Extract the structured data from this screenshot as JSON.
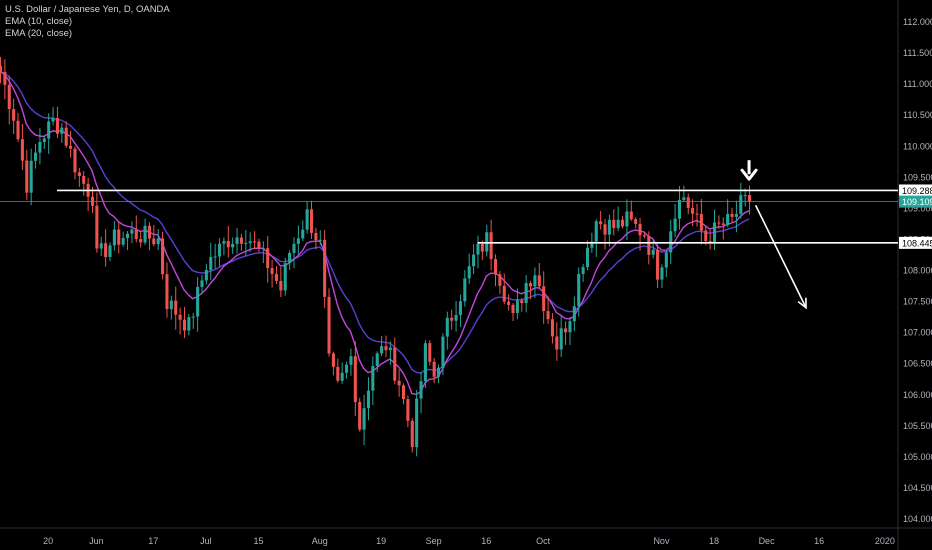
{
  "chart_data": {
    "type": "candlestick",
    "legend": {
      "title": "U.S. Dollar / Japanese Yen, D, OANDA",
      "indicators": [
        "EMA (10, close)",
        "EMA (20, close)"
      ]
    },
    "y_axis": {
      "range": [
        103.8,
        112.2
      ],
      "ticks": [
        "112.000",
        "111.500",
        "111.000",
        "110.500",
        "110.000",
        "109.500",
        "109.000",
        "108.500",
        "108.000",
        "107.500",
        "107.000",
        "106.500",
        "106.000",
        "105.500",
        "105.000",
        "104.500",
        "104.000"
      ]
    },
    "x_axis": {
      "range": [
        0,
        205
      ],
      "ticks": [
        {
          "label": "20",
          "x": 11
        },
        {
          "label": "Jun",
          "x": 22
        },
        {
          "label": "17",
          "x": 35
        },
        {
          "label": "Jul",
          "x": 47
        },
        {
          "label": "15",
          "x": 59
        },
        {
          "label": "Aug",
          "x": 73
        },
        {
          "label": "19",
          "x": 87
        },
        {
          "label": "Sep",
          "x": 99
        },
        {
          "label": "16",
          "x": 111
        },
        {
          "label": "Oct",
          "x": 124
        },
        {
          "label": "Nov",
          "x": 151
        },
        {
          "label": "18",
          "x": 163
        },
        {
          "label": "Dec",
          "x": 175
        },
        {
          "label": "16",
          "x": 187
        },
        {
          "label": "2020",
          "x": 202
        }
      ]
    },
    "horizontal_levels": [
      {
        "label": "109.288",
        "price": 109.288,
        "x_start": 13,
        "color": "#ffffff",
        "text_color": "#000000"
      },
      {
        "label": "108.445",
        "price": 108.445,
        "x_start": 109,
        "color": "#ffffff",
        "text_color": "#000000"
      },
      {
        "label": "109.109",
        "price": 109.109,
        "x_start": 0,
        "color": "#26a69a",
        "text_color": "#ffffff",
        "thin": true
      }
    ],
    "annotations": {
      "down_arrow": {
        "x": 171,
        "price": 109.55
      },
      "projection": {
        "from": [
          172.5,
          109.05
        ],
        "to": [
          184,
          107.4
        ]
      }
    },
    "colors": {
      "up": "#26a69a",
      "down": "#ef5350",
      "ema_fast": "#c546dc",
      "ema_slow": "#5b3fd6"
    },
    "anchors": [
      [
        0,
        111.2
      ],
      [
        3,
        110.5
      ],
      [
        6,
        109.4
      ],
      [
        9,
        110.1
      ],
      [
        12,
        110.4
      ],
      [
        14,
        110.3
      ],
      [
        18,
        109.5
      ],
      [
        21,
        109.2
      ],
      [
        22,
        108.2
      ],
      [
        26,
        108.5
      ],
      [
        30,
        108.6
      ],
      [
        36,
        108.5
      ],
      [
        38,
        107.5
      ],
      [
        43,
        107.1
      ],
      [
        47,
        108.1
      ],
      [
        52,
        108.5
      ],
      [
        56,
        108.6
      ],
      [
        61,
        108.1
      ],
      [
        64,
        107.7
      ],
      [
        66,
        108.3
      ],
      [
        70,
        108.9
      ],
      [
        73,
        108.4
      ],
      [
        75,
        106.5
      ],
      [
        77,
        106.1
      ],
      [
        80,
        106.6
      ],
      [
        82,
        105.5
      ],
      [
        85,
        106.5
      ],
      [
        88,
        106.8
      ],
      [
        91,
        106.2
      ],
      [
        94,
        105.3
      ],
      [
        97,
        106.7
      ],
      [
        99,
        106.3
      ],
      [
        102,
        107.1
      ],
      [
        106,
        107.8
      ],
      [
        108,
        108.2
      ],
      [
        111,
        108.5
      ],
      [
        114,
        107.9
      ],
      [
        117,
        107.2
      ],
      [
        120,
        107.8
      ],
      [
        122,
        108.0
      ],
      [
        124,
        107.5
      ],
      [
        127,
        106.8
      ],
      [
        130,
        107.3
      ],
      [
        133,
        108.2
      ],
      [
        136,
        108.8
      ],
      [
        140,
        108.7
      ],
      [
        143,
        108.8
      ],
      [
        147,
        108.6
      ],
      [
        150,
        108.0
      ],
      [
        152,
        108.4
      ],
      [
        154,
        109.0
      ],
      [
        156,
        109.2
      ],
      [
        158,
        108.9
      ],
      [
        161,
        108.5
      ],
      [
        164,
        108.7
      ],
      [
        167,
        108.8
      ],
      [
        169,
        109.05
      ],
      [
        171,
        109.109
      ]
    ]
  }
}
